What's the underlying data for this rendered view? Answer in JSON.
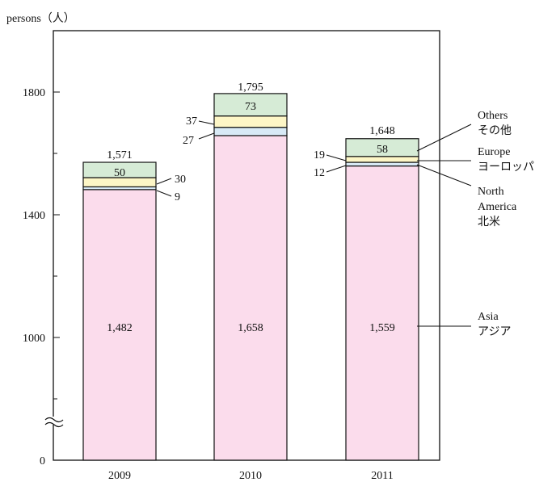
{
  "chart_data": {
    "type": "bar",
    "stacked": true,
    "y_unit_label": "persons（人）",
    "categories": [
      "2009",
      "2010",
      "2011"
    ],
    "y_ticks": [
      "0",
      "1000",
      "1400",
      "1800"
    ],
    "y_axis_break": true,
    "series": [
      {
        "name": "Asia アジア",
        "label_lines": [
          "Asia",
          "アジア"
        ],
        "color": "#fbdcec",
        "values": [
          1482,
          1658,
          1559
        ]
      },
      {
        "name": "North America 北米",
        "label_lines": [
          "North",
          "America",
          "北米"
        ],
        "color": "#d8eaf6",
        "values": [
          9,
          27,
          12
        ]
      },
      {
        "name": "Europe ヨーロッパ",
        "label_lines": [
          "Europe",
          "ヨーロッパ"
        ],
        "color": "#fdf6c6",
        "values": [
          30,
          37,
          19
        ]
      },
      {
        "name": "Others その他",
        "label_lines": [
          "Others",
          "その他"
        ],
        "color": "#d6ebd6",
        "values": [
          50,
          73,
          58
        ]
      }
    ],
    "totals": [
      1571,
      1795,
      1648
    ],
    "value_labels": {
      "Asia": [
        "1,482",
        "1,658",
        "1,559"
      ],
      "North America": [
        "9",
        "27",
        "12"
      ],
      "Europe": [
        "30",
        "37",
        "19"
      ],
      "Others": [
        "50",
        "73",
        "58"
      ],
      "totals": [
        "1,571",
        "1,795",
        "1,648"
      ]
    }
  }
}
